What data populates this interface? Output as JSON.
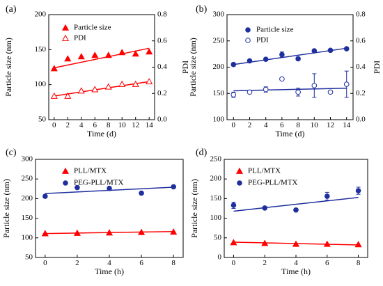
{
  "colors": {
    "red": "#ff0000",
    "blue": "#1f2f9e",
    "axis": "#000000"
  },
  "chart_data": [
    {
      "panel": "(a)",
      "type": "scatter",
      "xlabel": "Time (d)",
      "ylabel": "Particle size (nm)",
      "y2label": "PDI",
      "xlim": [
        -0.8,
        14.8
      ],
      "xticks": [
        0,
        2,
        4,
        6,
        8,
        10,
        12,
        14
      ],
      "ylim": [
        50,
        200
      ],
      "yticks": [
        50,
        100,
        150,
        200
      ],
      "y2lim": [
        0.0,
        0.8
      ],
      "y2ticks": [
        "0.0",
        "0.2",
        "0.4",
        "0.6",
        "0.8"
      ],
      "legend": "top-left",
      "series": [
        {
          "name": "Particle size",
          "marker": "triangle-filled",
          "color": "#ff0000",
          "axis": "left",
          "x": [
            0,
            2,
            4,
            6,
            8,
            10,
            12,
            14
          ],
          "y": [
            123,
            137,
            140,
            142,
            142,
            146,
            144,
            147
          ],
          "fit": [
            [
              0,
              124
            ],
            [
              14,
              152
            ]
          ]
        },
        {
          "name": "PDI",
          "marker": "triangle-open",
          "color": "#ff0000",
          "axis": "right",
          "x": [
            0,
            2,
            4,
            6,
            8,
            10,
            12,
            14
          ],
          "y": [
            0.18,
            0.18,
            0.22,
            0.23,
            0.25,
            0.27,
            0.27,
            0.29
          ],
          "fit": [
            [
              0,
              0.18
            ],
            [
              14,
              0.29
            ]
          ]
        }
      ]
    },
    {
      "panel": "(b)",
      "type": "scatter",
      "xlabel": "Time (d)",
      "ylabel": "Particle size (nm)",
      "y2label": "PDI",
      "xlim": [
        -0.8,
        14.8
      ],
      "xticks": [
        0,
        2,
        4,
        6,
        8,
        10,
        12,
        14
      ],
      "ylim": [
        100,
        300
      ],
      "yticks": [
        100,
        150,
        200,
        250,
        300
      ],
      "y2lim": [
        0.0,
        0.8
      ],
      "y2ticks": [
        "0.0",
        "0.2",
        "0.4",
        "0.6",
        "0.8"
      ],
      "legend": "top-left",
      "series": [
        {
          "name": "Particle size",
          "marker": "circle-filled",
          "color": "#1f2f9e",
          "axis": "left",
          "x": [
            0,
            2,
            4,
            6,
            8,
            10,
            12,
            14
          ],
          "y": [
            205,
            212,
            215,
            224,
            216,
            231,
            232,
            235
          ],
          "err": [
            3,
            2,
            2,
            5,
            3,
            2,
            2,
            2
          ],
          "fit": [
            [
              0,
              205
            ],
            [
              14,
              236
            ]
          ]
        },
        {
          "name": "PDI",
          "marker": "circle-open",
          "color": "#1f2f9e",
          "axis": "right",
          "x": [
            0,
            2,
            4,
            6,
            8,
            10,
            12,
            14
          ],
          "y": [
            0.19,
            0.21,
            0.23,
            0.31,
            0.21,
            0.26,
            0.21,
            0.27
          ],
          "err": [
            0.02,
            0.01,
            0.02,
            0.01,
            0.03,
            0.09,
            0.01,
            0.1
          ],
          "fit": [
            [
              0,
              0.22
            ],
            [
              14,
              0.24
            ]
          ]
        }
      ]
    },
    {
      "panel": "(c)",
      "type": "scatter",
      "xlabel": "Time (h)",
      "ylabel": "Particle size (nm)",
      "xlim": [
        -0.6,
        8.6
      ],
      "xticks": [
        0,
        2,
        4,
        6,
        8
      ],
      "ylim": [
        50,
        300
      ],
      "yticks": [
        50,
        100,
        150,
        200,
        250,
        300
      ],
      "legend": "top-left",
      "series": [
        {
          "name": "PLL/MTX",
          "marker": "triangle-filled",
          "color": "#ff0000",
          "x": [
            0,
            2,
            4,
            6,
            8
          ],
          "y": [
            111,
            112,
            113,
            114,
            115
          ],
          "fit": [
            [
              0,
              111
            ],
            [
              8,
              116
            ]
          ]
        },
        {
          "name": "PEG-PLL/MTX",
          "marker": "circle-filled",
          "color": "#1f2f9e",
          "x": [
            0,
            2,
            4,
            6,
            8
          ],
          "y": [
            206,
            228,
            226,
            214,
            230
          ],
          "fit": [
            [
              0,
              213
            ],
            [
              8,
              229
            ]
          ]
        }
      ]
    },
    {
      "panel": "(d)",
      "type": "scatter",
      "xlabel": "Time (h)",
      "ylabel": "Particle size (nm)",
      "xlim": [
        -0.6,
        8.6
      ],
      "xticks": [
        0,
        2,
        4,
        6,
        8
      ],
      "ylim": [
        0,
        250
      ],
      "yticks": [
        0,
        50,
        100,
        150,
        200,
        250
      ],
      "legend": "top-left",
      "series": [
        {
          "name": "PLL/MTX",
          "marker": "triangle-filled",
          "color": "#ff0000",
          "x": [
            0,
            2,
            4,
            6,
            8
          ],
          "y": [
            38,
            36,
            34,
            34,
            33
          ],
          "fit": [
            [
              0,
              39
            ],
            [
              8,
              32
            ]
          ]
        },
        {
          "name": "PEG-PLL/MTX",
          "marker": "circle-filled",
          "color": "#1f2f9e",
          "x": [
            0,
            2,
            4,
            6,
            8
          ],
          "y": [
            133,
            126,
            121,
            156,
            170
          ],
          "err": [
            8,
            3,
            4,
            10,
            9
          ],
          "fit": [
            [
              0,
              118
            ],
            [
              8,
              153
            ]
          ]
        }
      ]
    }
  ]
}
